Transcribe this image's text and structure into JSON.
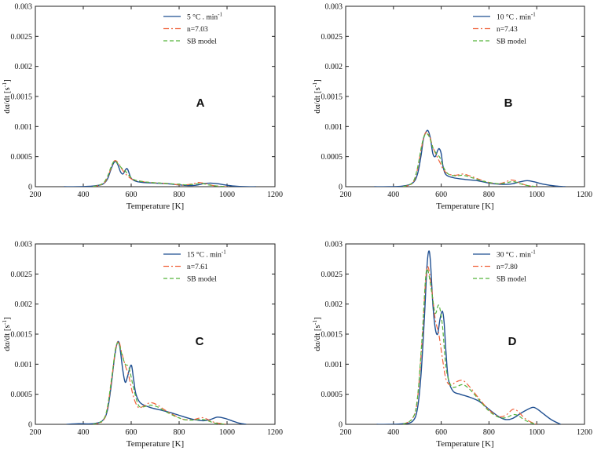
{
  "figure": {
    "letters": [
      "A",
      "B",
      "C",
      "D"
    ]
  },
  "colors": {
    "measured": "#1f4f91",
    "n_model": "#f0613a",
    "sb_model": "#55b33b",
    "axis": "#222222"
  },
  "chart_data": [
    {
      "type": "line",
      "letter": "A",
      "xlabel": "Temperature [K]",
      "ylabel": "dα/dt [s",
      "xlim": [
        200,
        1200
      ],
      "ylim": [
        0,
        0.003
      ],
      "xticks": [
        "200",
        "400",
        "600",
        "800",
        "1000",
        "1200"
      ],
      "yticks": [
        "0",
        "0.0005",
        "0.001",
        "0.0015",
        "0.002",
        "0.0025",
        "0.003"
      ],
      "ylabel_exp": "-1",
      "ylabel_close": "]",
      "legend": [
        "5 °C . min",
        "n=7.03",
        "SB model"
      ],
      "legend_sup": "-1",
      "series": [
        {
          "name": "5 °C . min-1",
          "style": "solid",
          "x": [
            320,
            380,
            440,
            480,
            500,
            515,
            525,
            535,
            545,
            555,
            565,
            575,
            580,
            585,
            590,
            600,
            620,
            650,
            700,
            750,
            800,
            830,
            860,
            880,
            900,
            930,
            960,
            990,
            1030,
            1080,
            1120
          ],
          "y": [
            0,
            0,
            1e-05,
            4e-05,
            0.00012,
            0.00028,
            0.00038,
            0.00042,
            0.00036,
            0.00025,
            0.00021,
            0.00027,
            0.0003,
            0.00029,
            0.00024,
            0.00014,
            9e-05,
            7e-05,
            6e-05,
            5e-05,
            3e-05,
            2e-05,
            2e-05,
            3e-05,
            5e-05,
            6e-05,
            5e-05,
            3e-05,
            1e-05,
            0,
            0
          ]
        },
        {
          "name": "n=7.03",
          "style": "dash",
          "x": [
            440,
            480,
            500,
            515,
            530,
            545,
            560,
            575,
            590,
            610,
            640,
            680,
            720,
            760,
            800,
            830,
            860,
            880,
            900,
            920,
            940,
            960,
            1000
          ],
          "y": [
            0,
            4e-05,
            0.00014,
            0.0003,
            0.00043,
            0.0004,
            0.0003,
            0.00022,
            0.00016,
            0.00011,
            9e-05,
            7e-05,
            6e-05,
            5e-05,
            3e-05,
            3e-05,
            5e-05,
            7e-05,
            6e-05,
            4e-05,
            2e-05,
            1e-05,
            0
          ]
        },
        {
          "name": "SB model",
          "style": "dash",
          "x": [
            440,
            480,
            500,
            515,
            530,
            545,
            560,
            575,
            590,
            610,
            640,
            680,
            720,
            760,
            800,
            830,
            860,
            880,
            900,
            920,
            940,
            960,
            1000
          ],
          "y": [
            0,
            5e-05,
            0.00016,
            0.00032,
            0.00043,
            0.00038,
            0.00031,
            0.00026,
            0.00019,
            0.00012,
            9e-05,
            7e-05,
            6e-05,
            5e-05,
            4e-05,
            3e-05,
            4e-05,
            5e-05,
            5e-05,
            3e-05,
            2e-05,
            1e-05,
            0
          ]
        }
      ]
    },
    {
      "type": "line",
      "letter": "B",
      "xlabel": "Temperature [K]",
      "ylabel": "dα/dt [s",
      "xlim": [
        200,
        1200
      ],
      "ylim": [
        0,
        0.003
      ],
      "xticks": [
        "200",
        "400",
        "600",
        "800",
        "1000",
        "1200"
      ],
      "yticks": [
        "0",
        "0.0005",
        "0.001",
        "0.0015",
        "0.002",
        "0.0025",
        "0.003"
      ],
      "ylabel_exp": "-1",
      "ylabel_close": "]",
      "legend": [
        "10 °C . min",
        "n=7.43",
        "SB model"
      ],
      "legend_sup": "-1",
      "series": [
        {
          "name": "10 °C . min-1",
          "style": "solid",
          "x": [
            320,
            380,
            440,
            480,
            500,
            515,
            525,
            535,
            545,
            555,
            565,
            575,
            585,
            592,
            600,
            608,
            620,
            650,
            700,
            750,
            800,
            850,
            880,
            900,
            930,
            960,
            990,
            1030,
            1080,
            1120
          ],
          "y": [
            0,
            0,
            1e-05,
            6e-05,
            0.0002,
            0.0005,
            0.00078,
            0.0009,
            0.00093,
            0.0008,
            0.00055,
            0.0005,
            0.0006,
            0.00063,
            0.00055,
            0.00033,
            0.0002,
            0.00015,
            0.00012,
            0.0001,
            6e-05,
            4e-05,
            4e-05,
            5e-05,
            8e-05,
            0.0001,
            8e-05,
            4e-05,
            1e-05,
            0
          ]
        },
        {
          "name": "n=7.43",
          "style": "dash",
          "x": [
            440,
            480,
            500,
            520,
            535,
            550,
            565,
            580,
            595,
            610,
            630,
            660,
            690,
            720,
            760,
            800,
            840,
            870,
            890,
            910,
            930,
            960,
            1000
          ],
          "y": [
            0,
            6e-05,
            0.00028,
            0.0007,
            0.0009,
            0.00085,
            0.00066,
            0.00052,
            0.0004,
            0.00028,
            0.00021,
            0.00019,
            0.00021,
            0.00018,
            0.00012,
            7e-05,
            5e-05,
            8e-05,
            0.00011,
            0.0001,
            6e-05,
            2e-05,
            0
          ]
        },
        {
          "name": "SB model",
          "style": "dash",
          "x": [
            440,
            480,
            500,
            520,
            535,
            550,
            565,
            580,
            595,
            610,
            630,
            660,
            690,
            720,
            760,
            800,
            840,
            870,
            890,
            910,
            930,
            960,
            1000
          ],
          "y": [
            0,
            7e-05,
            0.0003,
            0.00072,
            0.00088,
            0.00083,
            0.00065,
            0.00055,
            0.00048,
            0.00032,
            0.00021,
            0.00018,
            0.00019,
            0.00016,
            0.00011,
            7e-05,
            5e-05,
            6e-05,
            8e-05,
            8e-05,
            5e-05,
            2e-05,
            0
          ]
        }
      ]
    },
    {
      "type": "line",
      "letter": "C",
      "xlabel": "Temperature [K]",
      "ylabel": "dα/dt [s",
      "xlim": [
        200,
        1200
      ],
      "ylim": [
        0,
        0.003
      ],
      "xticks": [
        "200",
        "400",
        "600",
        "800",
        "1000",
        "1200"
      ],
      "yticks": [
        "0",
        "0.0005",
        "0.001",
        "0.0015",
        "0.002",
        "0.0025",
        "0.003"
      ],
      "ylabel_exp": "-1",
      "ylabel_close": "]",
      "legend": [
        "15 °C . min",
        "n=7.61",
        "SB model"
      ],
      "legend_sup": "-1",
      "series": [
        {
          "name": "15 °C . min-1",
          "style": "solid",
          "x": [
            330,
            380,
            440,
            480,
            500,
            515,
            530,
            540,
            548,
            555,
            565,
            575,
            585,
            595,
            602,
            610,
            620,
            640,
            680,
            720,
            760,
            800,
            850,
            900,
            930,
            960,
            990,
            1020,
            1050,
            1080
          ],
          "y": [
            0,
            1e-05,
            1e-05,
            6e-05,
            0.00022,
            0.0006,
            0.0011,
            0.00133,
            0.00137,
            0.00122,
            0.0009,
            0.0007,
            0.0008,
            0.00095,
            0.00097,
            0.00075,
            0.0005,
            0.00035,
            0.00028,
            0.00024,
            0.0002,
            0.00015,
            9e-05,
            6e-05,
            8e-05,
            0.00012,
            0.0001,
            6e-05,
            2e-05,
            0
          ]
        },
        {
          "name": "n=7.61",
          "style": "dash",
          "x": [
            440,
            480,
            500,
            520,
            535,
            548,
            560,
            575,
            590,
            610,
            630,
            650,
            680,
            710,
            740,
            780,
            820,
            860,
            880,
            900,
            920,
            950,
            1000
          ],
          "y": [
            0,
            5e-05,
            0.00025,
            0.0008,
            0.00125,
            0.00138,
            0.0012,
            0.00098,
            0.0008,
            0.00045,
            0.00028,
            0.0003,
            0.00036,
            0.00032,
            0.00024,
            0.00015,
            8e-05,
            8e-05,
            0.0001,
            0.00011,
            8e-05,
            3e-05,
            0
          ]
        },
        {
          "name": "SB model",
          "style": "dash",
          "x": [
            440,
            480,
            500,
            520,
            535,
            548,
            560,
            575,
            590,
            610,
            630,
            650,
            680,
            710,
            740,
            780,
            820,
            860,
            880,
            900,
            920,
            950,
            1000
          ],
          "y": [
            0,
            6e-05,
            0.00027,
            0.00082,
            0.00127,
            0.00135,
            0.00118,
            0.001,
            0.00095,
            0.0006,
            0.00032,
            0.00029,
            0.00032,
            0.00029,
            0.00022,
            0.00014,
            8e-05,
            7e-05,
            8e-05,
            8e-05,
            6e-05,
            2e-05,
            0
          ]
        }
      ]
    },
    {
      "type": "line",
      "letter": "D",
      "xlabel": "Temperature [K]",
      "ylabel": "dα/dt [s",
      "xlim": [
        200,
        1200
      ],
      "ylim": [
        0,
        0.003
      ],
      "xticks": [
        "200",
        "400",
        "600",
        "800",
        "1000",
        "1200"
      ],
      "yticks": [
        "0",
        "0.0005",
        "0.001",
        "0.0015",
        "0.002",
        "0.0025",
        "0.003"
      ],
      "ylabel_exp": "-1",
      "ylabel_close": "]",
      "legend": [
        "30 °C . min",
        "n=7.80",
        "SB model"
      ],
      "legend_sup": "-1",
      "series": [
        {
          "name": "30 °C . min-1",
          "style": "solid",
          "x": [
            330,
            380,
            440,
            480,
            500,
            515,
            530,
            540,
            548,
            555,
            565,
            575,
            585,
            595,
            605,
            612,
            620,
            630,
            650,
            680,
            720,
            760,
            800,
            840,
            870,
            900,
            940,
            980,
            1000,
            1020,
            1060,
            1100
          ],
          "y": [
            0,
            0,
            1e-05,
            5e-05,
            0.00025,
            0.0008,
            0.0018,
            0.0026,
            0.00288,
            0.0027,
            0.002,
            0.0016,
            0.0015,
            0.00175,
            0.00188,
            0.0017,
            0.0012,
            0.00075,
            0.00055,
            0.0005,
            0.00045,
            0.00038,
            0.00025,
            0.00013,
            8e-05,
            0.0001,
            0.0002,
            0.00028,
            0.00026,
            0.0002,
            8e-05,
            0
          ]
        },
        {
          "name": "n=7.80",
          "style": "dash",
          "x": [
            440,
            480,
            500,
            520,
            535,
            545,
            560,
            575,
            590,
            605,
            620,
            640,
            660,
            690,
            720,
            760,
            800,
            840,
            870,
            900,
            920,
            950,
            980,
            1000
          ],
          "y": [
            0,
            0.0001,
            0.0004,
            0.0014,
            0.0024,
            0.00262,
            0.00225,
            0.00175,
            0.0015,
            0.0011,
            0.00075,
            0.00065,
            0.0007,
            0.00073,
            0.00062,
            0.00042,
            0.00024,
            0.00013,
            0.00015,
            0.00025,
            0.00022,
            0.0001,
            3e-05,
            0
          ]
        },
        {
          "name": "SB model",
          "style": "dash",
          "x": [
            440,
            480,
            500,
            520,
            535,
            545,
            560,
            575,
            590,
            605,
            620,
            640,
            660,
            690,
            720,
            760,
            800,
            840,
            870,
            900,
            920,
            950,
            980,
            1000
          ],
          "y": [
            0,
            0.0001,
            0.00042,
            0.00145,
            0.00245,
            0.00255,
            0.0022,
            0.00185,
            0.00198,
            0.00165,
            0.00095,
            0.00065,
            0.00062,
            0.00066,
            0.00058,
            0.0004,
            0.00022,
            0.00012,
            0.00011,
            0.00016,
            0.00015,
            7e-05,
            2e-05,
            0
          ]
        }
      ]
    }
  ]
}
